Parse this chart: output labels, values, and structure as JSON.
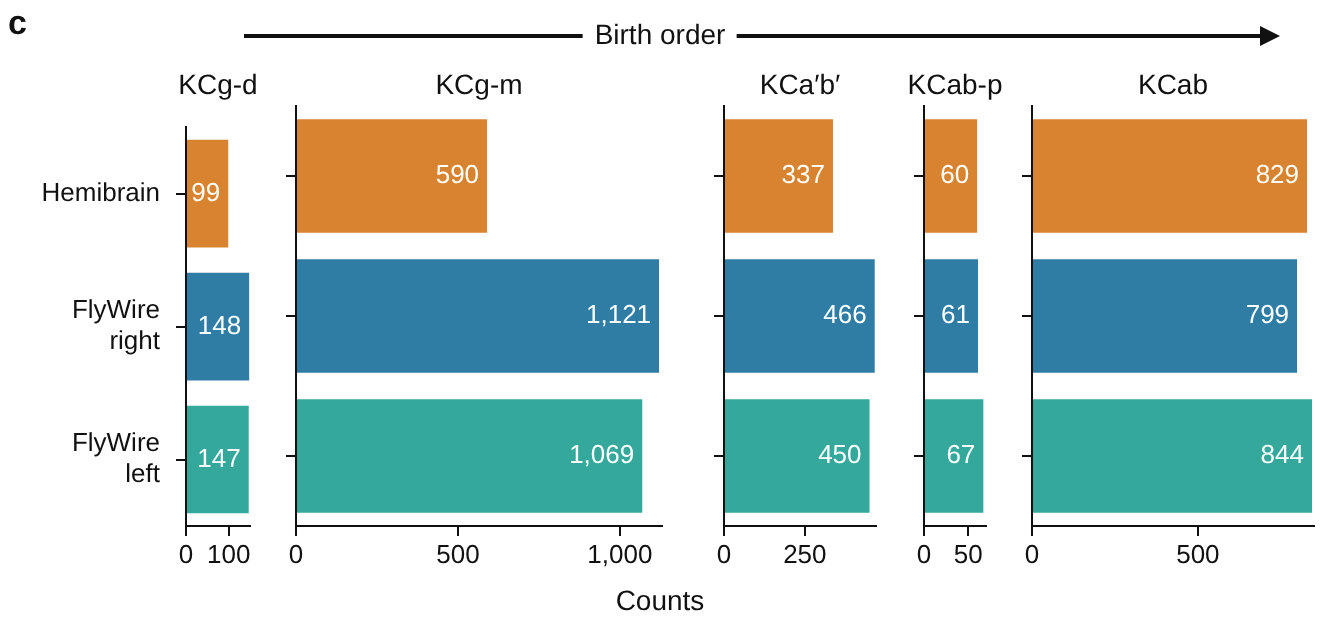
{
  "chart_data": [
    {
      "type": "bar",
      "orientation": "horizontal",
      "title": "KCg-d",
      "categories": [
        "Hemibrain",
        "FlyWire right",
        "FlyWire left"
      ],
      "values": [
        99,
        148,
        147
      ],
      "value_labels": [
        "99",
        "148",
        "147"
      ],
      "colors": [
        "#d8832f",
        "#2f7ca5",
        "#34a89b"
      ],
      "xlim": [
        0,
        150
      ],
      "xticks": [
        0,
        100
      ],
      "grid": false,
      "legend": false,
      "annotations": [
        "c",
        "Birth order"
      ]
    },
    {
      "type": "bar",
      "orientation": "horizontal",
      "title": "KCg-m",
      "categories": [
        null,
        null,
        null
      ],
      "values": [
        590,
        1121,
        1069
      ],
      "value_labels": [
        "590",
        "1,121",
        "1,069"
      ],
      "colors": [
        "#d8832f",
        "#2f7ca5",
        "#34a89b"
      ],
      "xlim": [
        0,
        1130
      ],
      "xticks": [
        0,
        500,
        {
          "value": 1000,
          "label": "1,000"
        }
      ],
      "xlabel": "Counts",
      "grid": false,
      "legend": false,
      "tick_labels": "x"
    },
    {
      "type": "bar",
      "orientation": "horizontal",
      "title": "KCa′b′",
      "categories": [
        null,
        null,
        null
      ],
      "values": [
        337,
        466,
        450
      ],
      "value_labels": [
        "337",
        "466",
        "450"
      ],
      "colors": [
        "#d8832f",
        "#2f7ca5",
        "#34a89b"
      ],
      "xlim": [
        0,
        470
      ],
      "xticks": [
        0,
        250
      ],
      "grid": false,
      "legend": false,
      "tick_labels": "x"
    },
    {
      "type": "bar",
      "orientation": "horizontal",
      "title": "KCab-p",
      "categories": [
        null,
        null,
        null
      ],
      "values": [
        60,
        61,
        67
      ],
      "value_labels": [
        "60",
        "61",
        "67"
      ],
      "colors": [
        "#d8832f",
        "#2f7ca5",
        "#34a89b"
      ],
      "xlim": [
        0,
        70
      ],
      "xticks": [
        0,
        50
      ],
      "grid": false,
      "legend": false,
      "tick_labels": "x"
    },
    {
      "type": "bar",
      "orientation": "horizontal",
      "title": "KCab",
      "categories": [
        null,
        null,
        null
      ],
      "values": [
        829,
        799,
        844
      ],
      "value_labels": [
        "829",
        "799",
        "844"
      ],
      "colors": [
        "#d8832f",
        "#2f7ca5",
        "#34a89b"
      ],
      "xlim": [
        0,
        850
      ],
      "xticks": [
        0,
        500
      ],
      "grid": false,
      "legend": false,
      "tick_labels": "x"
    }
  ]
}
